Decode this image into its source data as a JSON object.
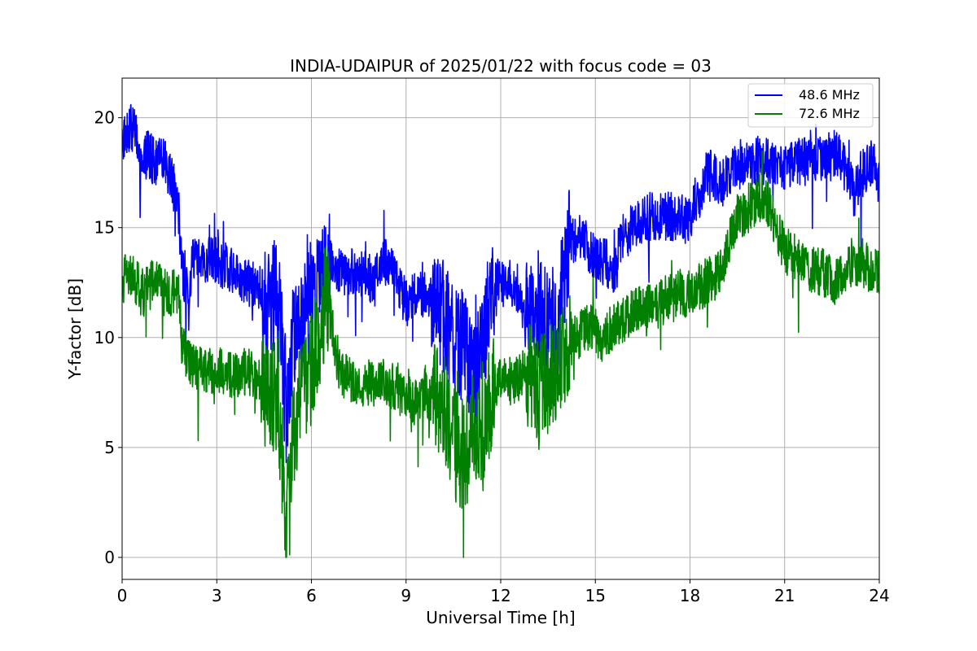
{
  "chart_data": {
    "type": "line",
    "title": "INDIA-UDAIPUR of 2025/01/22 with focus code = 03",
    "xlabel": "Universal Time [h]",
    "ylabel": "Y-factor [dB]",
    "xlim": [
      0,
      24
    ],
    "ylim": [
      -1,
      21.8
    ],
    "xticks": [
      0,
      3,
      6,
      9,
      12,
      15,
      18,
      21,
      24
    ],
    "yticks": [
      0,
      5,
      10,
      15,
      20
    ],
    "grid": true,
    "legend_position": "top-right",
    "series": [
      {
        "name": "48.6 MHz",
        "color": "#0000ff",
        "anchors": [
          [
            0.0,
            19.0
          ],
          [
            0.2,
            19.5
          ],
          [
            0.4,
            19.5
          ],
          [
            0.6,
            17.5
          ],
          [
            0.8,
            18.5
          ],
          [
            1.0,
            18.0
          ],
          [
            1.3,
            18.0
          ],
          [
            1.5,
            17.5
          ],
          [
            1.7,
            16.5
          ],
          [
            1.8,
            15.5
          ],
          [
            1.9,
            13.0
          ],
          [
            2.1,
            12.0
          ],
          [
            2.3,
            14.0
          ],
          [
            2.6,
            13.5
          ],
          [
            3.0,
            13.5
          ],
          [
            3.5,
            13.0
          ],
          [
            4.0,
            12.5
          ],
          [
            4.3,
            12.5
          ],
          [
            4.6,
            11.0
          ],
          [
            4.8,
            12.0
          ],
          [
            5.0,
            11.0
          ],
          [
            5.2,
            6.5
          ],
          [
            5.3,
            8.5
          ],
          [
            5.5,
            10.5
          ],
          [
            5.8,
            11.0
          ],
          [
            6.0,
            12.0
          ],
          [
            6.3,
            12.5
          ],
          [
            6.5,
            13.5
          ],
          [
            7.0,
            13.0
          ],
          [
            7.5,
            13.0
          ],
          [
            7.8,
            12.8
          ],
          [
            8.0,
            12.5
          ],
          [
            8.3,
            13.5
          ],
          [
            8.6,
            13.0
          ],
          [
            9.0,
            11.5
          ],
          [
            9.3,
            12.0
          ],
          [
            9.7,
            12.0
          ],
          [
            10.0,
            11.5
          ],
          [
            10.3,
            10.5
          ],
          [
            10.6,
            9.5
          ],
          [
            10.9,
            10.0
          ],
          [
            11.1,
            8.0
          ],
          [
            11.3,
            9.0
          ],
          [
            11.5,
            10.0
          ],
          [
            11.7,
            12.5
          ],
          [
            12.0,
            12.5
          ],
          [
            12.3,
            12.5
          ],
          [
            12.6,
            12.0
          ],
          [
            12.9,
            10.5
          ],
          [
            13.2,
            11.5
          ],
          [
            13.5,
            11.0
          ],
          [
            13.8,
            10.5
          ],
          [
            14.0,
            13.0
          ],
          [
            14.2,
            14.5
          ],
          [
            14.6,
            14.5
          ],
          [
            15.0,
            13.5
          ],
          [
            15.3,
            13.5
          ],
          [
            15.6,
            13.0
          ],
          [
            15.8,
            14.5
          ],
          [
            16.2,
            15.0
          ],
          [
            16.6,
            15.5
          ],
          [
            17.0,
            15.5
          ],
          [
            17.5,
            15.5
          ],
          [
            18.0,
            15.5
          ],
          [
            18.3,
            16.5
          ],
          [
            18.6,
            17.5
          ],
          [
            19.0,
            17.0
          ],
          [
            19.5,
            18.0
          ],
          [
            20.0,
            18.0
          ],
          [
            20.5,
            18.0
          ],
          [
            21.0,
            17.8
          ],
          [
            21.5,
            18.0
          ],
          [
            22.0,
            18.0
          ],
          [
            22.5,
            18.5
          ],
          [
            22.8,
            18.0
          ],
          [
            23.0,
            17.5
          ],
          [
            23.2,
            16.5
          ],
          [
            23.5,
            17.5
          ],
          [
            23.8,
            18.0
          ],
          [
            24.0,
            17.0
          ]
        ]
      },
      {
        "name": "72.6 MHz",
        "color": "#008000",
        "anchors": [
          [
            0.0,
            12.5
          ],
          [
            0.3,
            13.0
          ],
          [
            0.6,
            12.0
          ],
          [
            1.0,
            12.5
          ],
          [
            1.4,
            12.0
          ],
          [
            1.8,
            12.0
          ],
          [
            1.9,
            9.5
          ],
          [
            2.2,
            8.8
          ],
          [
            2.6,
            8.5
          ],
          [
            3.0,
            8.5
          ],
          [
            3.5,
            8.3
          ],
          [
            4.0,
            8.5
          ],
          [
            4.4,
            8.0
          ],
          [
            4.6,
            7.0
          ],
          [
            4.9,
            7.5
          ],
          [
            5.1,
            4.0
          ],
          [
            5.2,
            1.5
          ],
          [
            5.4,
            5.5
          ],
          [
            5.6,
            7.0
          ],
          [
            5.9,
            8.0
          ],
          [
            6.2,
            10.0
          ],
          [
            6.5,
            12.0
          ],
          [
            6.7,
            10.0
          ],
          [
            6.9,
            8.5
          ],
          [
            7.3,
            8.0
          ],
          [
            7.6,
            8.0
          ],
          [
            7.8,
            8.0
          ],
          [
            8.0,
            7.8
          ],
          [
            8.3,
            8.0
          ],
          [
            8.6,
            7.8
          ],
          [
            9.0,
            7.0
          ],
          [
            9.3,
            7.0
          ],
          [
            9.6,
            7.5
          ],
          [
            10.0,
            7.0
          ],
          [
            10.3,
            6.5
          ],
          [
            10.6,
            5.0
          ],
          [
            10.9,
            4.5
          ],
          [
            11.1,
            6.0
          ],
          [
            11.4,
            5.0
          ],
          [
            11.7,
            7.5
          ],
          [
            12.0,
            8.0
          ],
          [
            12.4,
            8.0
          ],
          [
            12.8,
            8.5
          ],
          [
            13.2,
            7.5
          ],
          [
            13.6,
            8.0
          ],
          [
            14.0,
            9.5
          ],
          [
            14.4,
            10.0
          ],
          [
            14.8,
            10.5
          ],
          [
            15.2,
            10.0
          ],
          [
            15.6,
            10.5
          ],
          [
            16.0,
            11.0
          ],
          [
            16.5,
            11.5
          ],
          [
            17.0,
            11.5
          ],
          [
            17.5,
            12.0
          ],
          [
            18.0,
            12.0
          ],
          [
            18.5,
            12.5
          ],
          [
            19.0,
            13.0
          ],
          [
            19.5,
            15.5
          ],
          [
            20.0,
            16.0
          ],
          [
            20.3,
            16.5
          ],
          [
            20.6,
            15.5
          ],
          [
            21.0,
            14.0
          ],
          [
            21.4,
            13.5
          ],
          [
            21.8,
            13.0
          ],
          [
            22.2,
            13.0
          ],
          [
            22.6,
            12.5
          ],
          [
            23.0,
            13.0
          ],
          [
            23.4,
            13.5
          ],
          [
            23.8,
            13.0
          ],
          [
            24.0,
            13.0
          ]
        ]
      }
    ]
  }
}
